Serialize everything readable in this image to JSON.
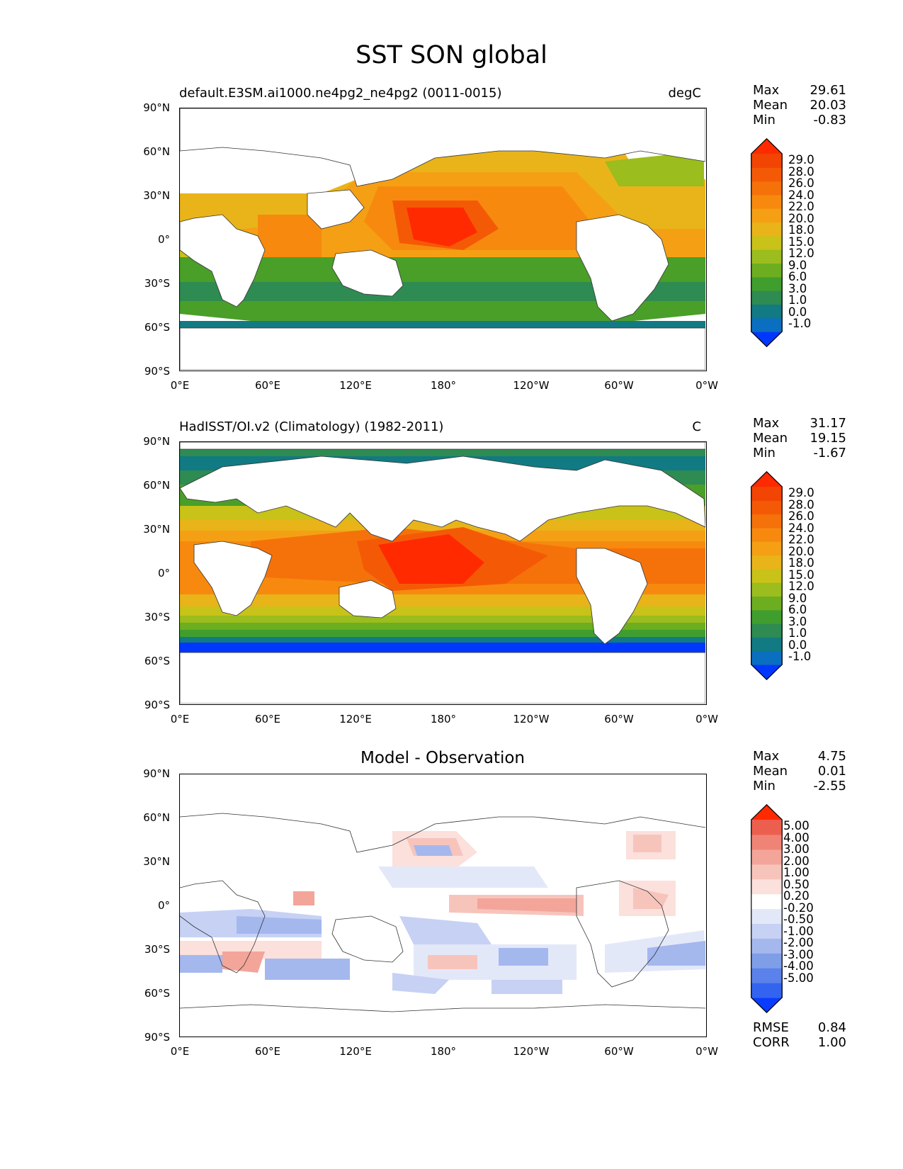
{
  "title": "SST SON global",
  "lat_labels": [
    "90°N",
    "60°N",
    "30°N",
    "0°",
    "30°S",
    "60°S",
    "90°S"
  ],
  "lon_labels": [
    "0°E",
    "60°E",
    "120°E",
    "180°",
    "120°W",
    "60°W",
    "0°W"
  ],
  "panels": [
    {
      "id": "test",
      "title_left": "default.E3SM.ai1000.ne4pg2_ne4pg2 (0011-0015)",
      "units": "degC",
      "stats": [
        {
          "label": "Max",
          "value": "29.61"
        },
        {
          "label": "Mean",
          "value": "20.03"
        },
        {
          "label": "Min",
          "value": "-0.83"
        }
      ],
      "colorbar": {
        "labels": [
          "29.0",
          "28.0",
          "26.0",
          "24.0",
          "22.0",
          "20.0",
          "18.0",
          "15.0",
          "12.0",
          "9.0",
          "6.0",
          "3.0",
          "1.0",
          "0.0",
          "-1.0"
        ],
        "colors": [
          "#0037ff",
          "#0a6fc0",
          "#127a82",
          "#2e8b52",
          "#3f9e2e",
          "#6cae20",
          "#9bbd1d",
          "#c8c219",
          "#e8b41a",
          "#f5a014",
          "#f78a0e",
          "#f5720a",
          "#f45a06",
          "#f24403",
          "#ff2a00"
        ]
      }
    },
    {
      "id": "ref",
      "title_left": "HadISST/OI.v2 (Climatology) (1982-2011)",
      "units": "C",
      "stats": [
        {
          "label": "Max",
          "value": "31.17"
        },
        {
          "label": "Mean",
          "value": "19.15"
        },
        {
          "label": "Min",
          "value": "-1.67"
        }
      ],
      "colorbar": {
        "labels": [
          "29.0",
          "28.0",
          "26.0",
          "24.0",
          "22.0",
          "20.0",
          "18.0",
          "15.0",
          "12.0",
          "9.0",
          "6.0",
          "3.0",
          "1.0",
          "0.0",
          "-1.0"
        ],
        "colors": [
          "#0037ff",
          "#0a6fc0",
          "#127a82",
          "#2e8b52",
          "#3f9e2e",
          "#6cae20",
          "#9bbd1d",
          "#c8c219",
          "#e8b41a",
          "#f5a014",
          "#f78a0e",
          "#f5720a",
          "#f45a06",
          "#f24403",
          "#ff2a00"
        ]
      }
    },
    {
      "id": "diff",
      "title_center": "Model - Observation",
      "stats": [
        {
          "label": "Max",
          "value": "4.75"
        },
        {
          "label": "Mean",
          "value": "0.01"
        },
        {
          "label": "Min",
          "value": "-2.55"
        }
      ],
      "extra_stats": [
        {
          "label": "RMSE",
          "value": "0.84"
        },
        {
          "label": "CORR",
          "value": "1.00"
        }
      ],
      "colorbar": {
        "labels": [
          "5.00",
          "4.00",
          "3.00",
          "2.00",
          "1.00",
          "0.50",
          "0.20",
          "-0.20",
          "-0.50",
          "-1.00",
          "-2.00",
          "-3.00",
          "-4.00",
          "-5.00"
        ],
        "colors": [
          "#0a3cff",
          "#3364f0",
          "#5a82ea",
          "#7f9ee8",
          "#a4b8ee",
          "#c6d1f4",
          "#e3e8f9",
          "#ffffff",
          "#fbe0dc",
          "#f7c4bc",
          "#f3a59a",
          "#ef8476",
          "#ec5f4e",
          "#ff2a00"
        ]
      }
    }
  ]
}
